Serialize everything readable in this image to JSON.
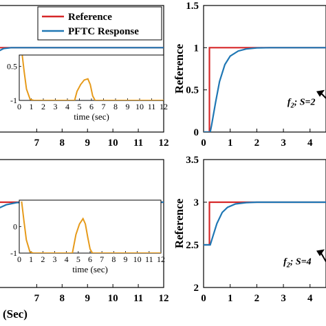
{
  "chart_data": [
    {
      "id": "top-left",
      "type": "line",
      "xlim": [
        5.5,
        12
      ],
      "ylim": [
        0,
        1.5
      ],
      "x_ticks": [
        "7",
        "8",
        "9",
        "10",
        "11",
        "12"
      ],
      "series": [
        {
          "name": "Reference",
          "color": "#d62728",
          "points": [
            [
              5.5,
              1
            ],
            [
              12,
              1
            ]
          ]
        },
        {
          "name": "PFTC Response",
          "color": "#1f77b4",
          "points": [
            [
              5.5,
              0.96
            ],
            [
              5.7,
              0.99
            ],
            [
              6.0,
              1.0
            ],
            [
              12,
              1.0
            ]
          ]
        }
      ],
      "legend": {
        "position": "top-right",
        "entries": [
          {
            "label": "Reference",
            "color": "#d62728"
          },
          {
            "label": "PFTC Response",
            "color": "#1f77b4"
          }
        ]
      },
      "inset": {
        "xlabel": "time (sec)",
        "xlim": [
          0,
          12
        ],
        "ylim": [
          -1,
          1
        ],
        "x_ticks": [
          "0",
          "1",
          "2",
          "3",
          "4",
          "5",
          "6",
          "7",
          "8",
          "9",
          "10",
          "11",
          "12"
        ],
        "y_ticks": [
          "0.5",
          "-1"
        ],
        "color": "#e69a1a",
        "points": [
          [
            0.25,
            0.98
          ],
          [
            0.4,
            0.3
          ],
          [
            0.6,
            -0.5
          ],
          [
            0.9,
            -0.95
          ],
          [
            1.2,
            -1.0
          ],
          [
            4.6,
            -1.0
          ],
          [
            4.8,
            -0.6
          ],
          [
            5.1,
            -0.3
          ],
          [
            5.4,
            -0.1
          ],
          [
            5.7,
            -0.05
          ],
          [
            5.9,
            -0.3
          ],
          [
            6.1,
            -0.8
          ],
          [
            6.3,
            -1.0
          ],
          [
            12,
            -1.0
          ]
        ]
      }
    },
    {
      "id": "top-right",
      "type": "line",
      "ylabel": "Reference",
      "xlim": [
        0,
        4.6
      ],
      "ylim": [
        0,
        1.5
      ],
      "x_ticks": [
        "0",
        "1",
        "2",
        "3",
        "4"
      ],
      "y_ticks": [
        "0",
        "0.5",
        "1",
        "1.5"
      ],
      "series": [
        {
          "name": "Reference",
          "color": "#d62728",
          "points": [
            [
              0,
              0
            ],
            [
              0.22,
              0
            ],
            [
              0.22,
              1
            ],
            [
              4.6,
              1
            ]
          ]
        },
        {
          "name": "PFTC Response",
          "color": "#1f77b4",
          "points": [
            [
              0,
              0
            ],
            [
              0.25,
              0
            ],
            [
              0.3,
              0.08
            ],
            [
              0.45,
              0.35
            ],
            [
              0.6,
              0.6
            ],
            [
              0.8,
              0.8
            ],
            [
              1.0,
              0.9
            ],
            [
              1.3,
              0.96
            ],
            [
              1.6,
              0.985
            ],
            [
              2.0,
              0.997
            ],
            [
              2.5,
              1.0
            ],
            [
              4.6,
              1.0
            ]
          ]
        }
      ],
      "annotation": {
        "main": "f",
        "sub": "2",
        "rest": "; S=2",
        "data_x": 3.15,
        "data_y": 0.32
      }
    },
    {
      "id": "bottom-left",
      "type": "line",
      "xlabel": "(Sec)",
      "xlim": [
        5.5,
        12
      ],
      "ylim": [
        0,
        1.5
      ],
      "x_ticks": [
        "7",
        "8",
        "9",
        "10",
        "11",
        "12"
      ],
      "series": [
        {
          "name": "Reference",
          "color": "#d62728",
          "points": [
            [
              5.5,
              1
            ],
            [
              12,
              1
            ]
          ]
        },
        {
          "name": "PFTC Response",
          "color": "#1f77b4",
          "points": [
            [
              5.5,
              0.93
            ],
            [
              5.8,
              0.97
            ],
            [
              6.2,
              0.995
            ],
            [
              6.6,
              1.0
            ],
            [
              12,
              1.0
            ]
          ]
        }
      ],
      "inset": {
        "xlabel": "time (sec)",
        "xlim": [
          0,
          12
        ],
        "ylim": [
          -1,
          1
        ],
        "x_ticks": [
          "0",
          "1",
          "2",
          "3",
          "4",
          "5",
          "6",
          "7",
          "8",
          "9",
          "10",
          "11",
          "12"
        ],
        "y_ticks": [
          "0",
          "-1"
        ],
        "color": "#e69a1a",
        "points": [
          [
            0.2,
            0.95
          ],
          [
            0.4,
            0.2
          ],
          [
            0.6,
            -0.5
          ],
          [
            0.9,
            -0.95
          ],
          [
            1.2,
            -1.0
          ],
          [
            4.5,
            -1.0
          ],
          [
            4.8,
            -0.3
          ],
          [
            5.1,
            0.1
          ],
          [
            5.4,
            0.3
          ],
          [
            5.6,
            0.1
          ],
          [
            5.8,
            -0.4
          ],
          [
            6.0,
            -0.85
          ],
          [
            6.2,
            -1.0
          ],
          [
            12,
            -1.0
          ]
        ]
      }
    },
    {
      "id": "bottom-right",
      "type": "line",
      "ylabel": "Reference",
      "xlim": [
        0,
        4.6
      ],
      "ylim": [
        2,
        3.5
      ],
      "x_ticks": [
        "0",
        "1",
        "2",
        "3",
        "4"
      ],
      "y_ticks": [
        "2",
        "2.5",
        "3",
        "3.5"
      ],
      "series": [
        {
          "name": "Reference",
          "color": "#d62728",
          "points": [
            [
              0,
              2.5
            ],
            [
              0.22,
              2.5
            ],
            [
              0.22,
              3.0
            ],
            [
              4.6,
              3.0
            ]
          ]
        },
        {
          "name": "PFTC Response",
          "color": "#1f77b4",
          "points": [
            [
              0,
              2.5
            ],
            [
              0.25,
              2.5
            ],
            [
              0.35,
              2.6
            ],
            [
              0.5,
              2.75
            ],
            [
              0.7,
              2.88
            ],
            [
              0.9,
              2.94
            ],
            [
              1.2,
              2.98
            ],
            [
              1.6,
              2.995
            ],
            [
              2.0,
              3.0
            ],
            [
              4.6,
              3.0
            ]
          ]
        }
      ],
      "annotation": {
        "main": "f",
        "sub": "2",
        "rest": "; S=4",
        "data_x": 3.0,
        "data_y": 2.27
      }
    }
  ]
}
